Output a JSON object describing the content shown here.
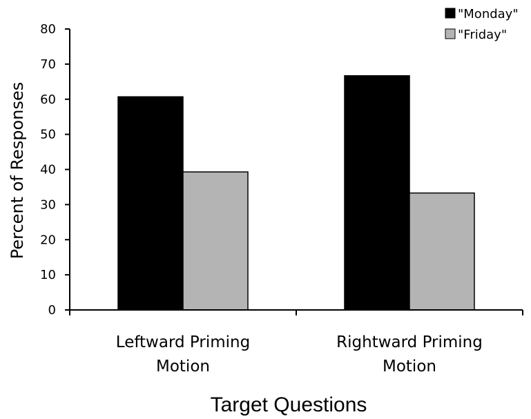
{
  "chart_data": {
    "type": "bar",
    "categories": [
      [
        "Leftward Priming",
        "Motion"
      ],
      [
        "Rightward Priming",
        "Motion"
      ]
    ],
    "series": [
      {
        "name": "\"Monday\"",
        "values": [
          60.7,
          66.7
        ],
        "color": "#000000"
      },
      {
        "name": "\"Friday\"",
        "values": [
          39.3,
          33.3
        ],
        "color": "#b4b4b4"
      }
    ],
    "xlabel": "Target Questions",
    "ylabel": "Percent of Responses",
    "ylim": [
      0,
      80
    ],
    "yticks": [
      0,
      10,
      20,
      30,
      40,
      50,
      60,
      70,
      80
    ],
    "grid": false,
    "legend_position": "top-right"
  }
}
